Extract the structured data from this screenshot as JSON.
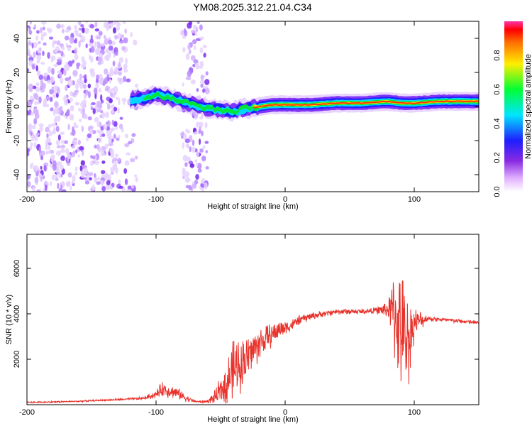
{
  "title": "YM08.2025.312.21.04.C34",
  "chart_data": [
    {
      "type": "heatmap",
      "name": "spectrogram",
      "xlabel": "Height of straight line (km)",
      "ylabel": "Frequency (Hz)",
      "xlim": [
        -200,
        150
      ],
      "ylim": [
        -50,
        50
      ],
      "xticks": [
        -200,
        -100,
        0,
        100
      ],
      "yticks": [
        -40,
        -20,
        0,
        20,
        40
      ],
      "color_scale": "rainbow (white to red)",
      "signal_band": {
        "x": [
          -120,
          -110,
          -100,
          -95,
          -90,
          -85,
          -80,
          -75,
          -70,
          -65,
          -60,
          -50,
          -40,
          -30,
          -20,
          -10,
          0,
          20,
          40,
          60,
          80,
          90,
          100,
          120,
          150
        ],
        "y": [
          4,
          5,
          7,
          6,
          5,
          4,
          3,
          2,
          1,
          0,
          -1,
          -2,
          -3,
          -1,
          0,
          1,
          1,
          1,
          2,
          2,
          3,
          2,
          2,
          3,
          3
        ]
      },
      "noise_regions": [
        [
          -200,
          -115
        ],
        [
          -80,
          -60
        ]
      ]
    },
    {
      "type": "line",
      "name": "snr",
      "xlabel": "Height of straight line (km)",
      "ylabel": "SNR (10 * v/v)",
      "xlim": [
        -200,
        150
      ],
      "ylim": [
        0,
        7500
      ],
      "xticks": [
        -200,
        -100,
        0,
        100
      ],
      "yticks": [
        2000,
        4000,
        6000
      ],
      "series": [
        {
          "name": "SNR",
          "color": "#e8322b",
          "x": [
            -200,
            -180,
            -160,
            -140,
            -120,
            -110,
            -100,
            -95,
            -90,
            -85,
            -80,
            -75,
            -70,
            -65,
            -60,
            -55,
            -50,
            -45,
            -40,
            -35,
            -30,
            -25,
            -20,
            -15,
            -10,
            -5,
            0,
            5,
            10,
            20,
            30,
            40,
            50,
            60,
            70,
            80,
            85,
            90,
            95,
            100,
            110,
            120,
            130,
            140,
            150
          ],
          "values": [
            100,
            120,
            150,
            200,
            250,
            280,
            450,
            700,
            600,
            550,
            400,
            250,
            150,
            120,
            150,
            300,
            600,
            1000,
            1500,
            1800,
            2000,
            2400,
            2700,
            2900,
            3100,
            3300,
            3400,
            3500,
            3700,
            3900,
            4000,
            4100,
            4100,
            4100,
            4150,
            4200,
            4000,
            3200,
            2800,
            3600,
            3800,
            3750,
            3700,
            3650,
            3600
          ],
          "amplitude": [
            40,
            40,
            40,
            40,
            60,
            80,
            200,
            400,
            350,
            300,
            250,
            150,
            60,
            60,
            80,
            300,
            700,
            1200,
            1600,
            1400,
            1300,
            1000,
            900,
            700,
            600,
            500,
            400,
            300,
            250,
            200,
            150,
            150,
            150,
            150,
            150,
            500,
            2500,
            3000,
            2500,
            800,
            150,
            120,
            110,
            110,
            110
          ]
        }
      ]
    }
  ],
  "colorbar": {
    "label": "Normalized spectral amplitude",
    "ticks": [
      "0.0",
      "0.2",
      "0.4",
      "0.6",
      "0.8"
    ],
    "tick_values": [
      0.0,
      0.2,
      0.4,
      0.6,
      0.8
    ],
    "range": [
      0,
      1
    ]
  }
}
